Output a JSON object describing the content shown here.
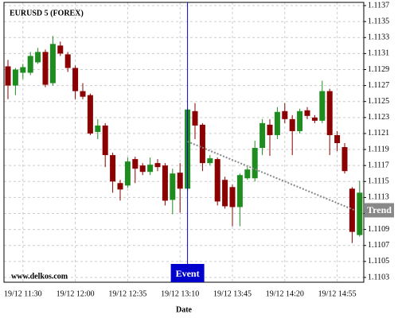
{
  "chart_data": {
    "type": "candlestick",
    "title": "EURUSD 5 (FOREX)",
    "watermark": "www.delkos.com",
    "x_label": "Date",
    "categories": [
      null,
      null,
      "19/12 11:30",
      null,
      null,
      null,
      null,
      null,
      null,
      "19/12 12:00",
      null,
      null,
      null,
      null,
      null,
      null,
      "19/12 12:35",
      null,
      null,
      null,
      null,
      null,
      null,
      "19/12 13:10",
      null,
      null,
      null,
      null,
      null,
      null,
      "19/12 13:45",
      null,
      null,
      null,
      null,
      null,
      null,
      "19/12 14:20",
      null,
      null,
      null,
      null,
      null,
      null,
      "19/12 14:55",
      null,
      null,
      null
    ],
    "open": [
      1.11294,
      1.1127,
      1.11286,
      1.11286,
      1.11299,
      1.11312,
      1.11273,
      1.1132,
      1.11309,
      1.11292,
      1.11263,
      1.11258,
      1.11212,
      1.1122,
      1.11183,
      1.11148,
      1.11145,
      1.11178,
      1.1117,
      1.11162,
      1.11173,
      1.1117,
      1.11127,
      1.11161,
      1.11141,
      1.11238,
      1.11221,
      1.11173,
      1.11178,
      1.11152,
      1.11143,
      1.11118,
      1.11154,
      1.11154,
      1.11192,
      1.11221,
      1.11208,
      1.11238,
      1.11228,
      1.11213,
      1.11239,
      1.1123,
      1.11226,
      1.11263,
      1.11208,
      1.11193,
      1.11141,
      1.11083
    ],
    "high": [
      1.11302,
      1.11292,
      1.11297,
      1.11312,
      1.11317,
      1.11315,
      1.11332,
      1.11325,
      1.11312,
      1.11295,
      1.11273,
      1.1126,
      1.11228,
      1.11223,
      1.11186,
      1.11152,
      1.1118,
      1.11181,
      1.11173,
      1.1118,
      1.11178,
      1.11173,
      1.11166,
      1.11173,
      1.11241,
      1.11248,
      1.11223,
      1.11183,
      1.1118,
      1.11156,
      1.11146,
      1.1116,
      1.11168,
      1.11201,
      1.11228,
      1.11228,
      1.11243,
      1.11248,
      1.11233,
      1.11241,
      1.11243,
      1.11233,
      1.11276,
      1.11266,
      1.11213,
      1.11198,
      1.11143,
      1.11151
    ],
    "low": [
      1.11253,
      1.11258,
      1.11278,
      1.11283,
      1.11297,
      1.11268,
      1.1127,
      1.11307,
      1.11287,
      1.11253,
      1.11253,
      1.11208,
      1.11203,
      1.11168,
      1.11136,
      1.11126,
      1.11142,
      1.11148,
      1.11158,
      1.11158,
      1.11163,
      1.1112,
      1.11109,
      1.11111,
      1.11138,
      1.11203,
      1.11163,
      1.1117,
      1.1112,
      1.11116,
      1.11094,
      1.11094,
      1.11152,
      1.1115,
      1.11183,
      1.11182,
      1.11203,
      1.11223,
      1.11183,
      1.1121,
      1.11228,
      1.11223,
      1.11223,
      1.11183,
      1.11188,
      1.1116,
      1.11073,
      1.11081
    ],
    "close": [
      1.1127,
      1.1129,
      1.11293,
      1.11307,
      1.11312,
      1.11271,
      1.11322,
      1.1131,
      1.11292,
      1.11263,
      1.11256,
      1.1121,
      1.1122,
      1.11183,
      1.1115,
      1.1114,
      1.11175,
      1.11166,
      1.11162,
      1.11171,
      1.11168,
      1.11126,
      1.1116,
      1.11141,
      1.1124,
      1.1122,
      1.11173,
      1.11179,
      1.11125,
      1.11119,
      1.11118,
      1.11158,
      1.11165,
      1.11192,
      1.11223,
      1.11208,
      1.11237,
      1.11228,
      1.11213,
      1.11238,
      1.11232,
      1.11226,
      1.11263,
      1.11208,
      1.11198,
      1.11163,
      1.11087,
      1.11136
    ],
    "up_color": "#1e8c1e",
    "down_color": "#8b0000",
    "ylim": [
      1.11024,
      1.11374
    ],
    "yticks": [
      1.1103,
      1.1105,
      1.1107,
      1.1109,
      1.1111,
      1.1113,
      1.1115,
      1.1117,
      1.1119,
      1.1121,
      1.1123,
      1.1125,
      1.1127,
      1.1129,
      1.1131,
      1.1133,
      1.1135,
      1.1137
    ],
    "grid": true,
    "event": {
      "label": "Event",
      "index": 24,
      "color": "#0000cc"
    },
    "trend": {
      "label": "Trend",
      "start": {
        "index": 24,
        "value": 1.112
      },
      "end": {
        "index": 47,
        "value": 1.11114
      },
      "color": "#888888"
    }
  }
}
